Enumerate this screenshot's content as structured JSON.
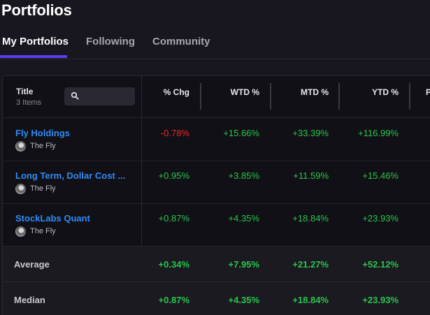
{
  "page": {
    "title": "Portfolios"
  },
  "tabs": [
    {
      "label": "My Portfolios",
      "active": true
    },
    {
      "label": "Following",
      "active": false
    },
    {
      "label": "Community",
      "active": false
    }
  ],
  "table": {
    "title_header": "Title",
    "item_count": "3 Items",
    "search": {
      "placeholder": "",
      "icon": "search-icon"
    },
    "columns": [
      "% Chg",
      "WTD %",
      "MTD %",
      "YTD %",
      "P"
    ],
    "rows": [
      {
        "name": "Fly Holdings",
        "author": "The Fly",
        "chg": "-0.78%",
        "wtd": "+15.66%",
        "mtd": "+33.39%",
        "ytd": "+116.99%"
      },
      {
        "name": "Long Term, Dollar Cost ...",
        "author": "The Fly",
        "chg": "+0.95%",
        "wtd": "+3.85%",
        "mtd": "+11.59%",
        "ytd": "+15.46%"
      },
      {
        "name": "StockLabs Quant",
        "author": "The Fly",
        "chg": "+0.87%",
        "wtd": "+4.35%",
        "mtd": "+18.84%",
        "ytd": "+23.93%"
      }
    ],
    "summary": [
      {
        "label": "Average",
        "chg": "+0.34%",
        "wtd": "+7.95%",
        "mtd": "+21.27%",
        "ytd": "+52.12%"
      },
      {
        "label": "Median",
        "chg": "+0.87%",
        "wtd": "+4.35%",
        "mtd": "+18.84%",
        "ytd": "+23.93%"
      }
    ]
  },
  "colors": {
    "positive": "#29c54c",
    "negative": "#e52a2a",
    "link": "#2f8bf5",
    "accent": "#5a3ef0"
  }
}
